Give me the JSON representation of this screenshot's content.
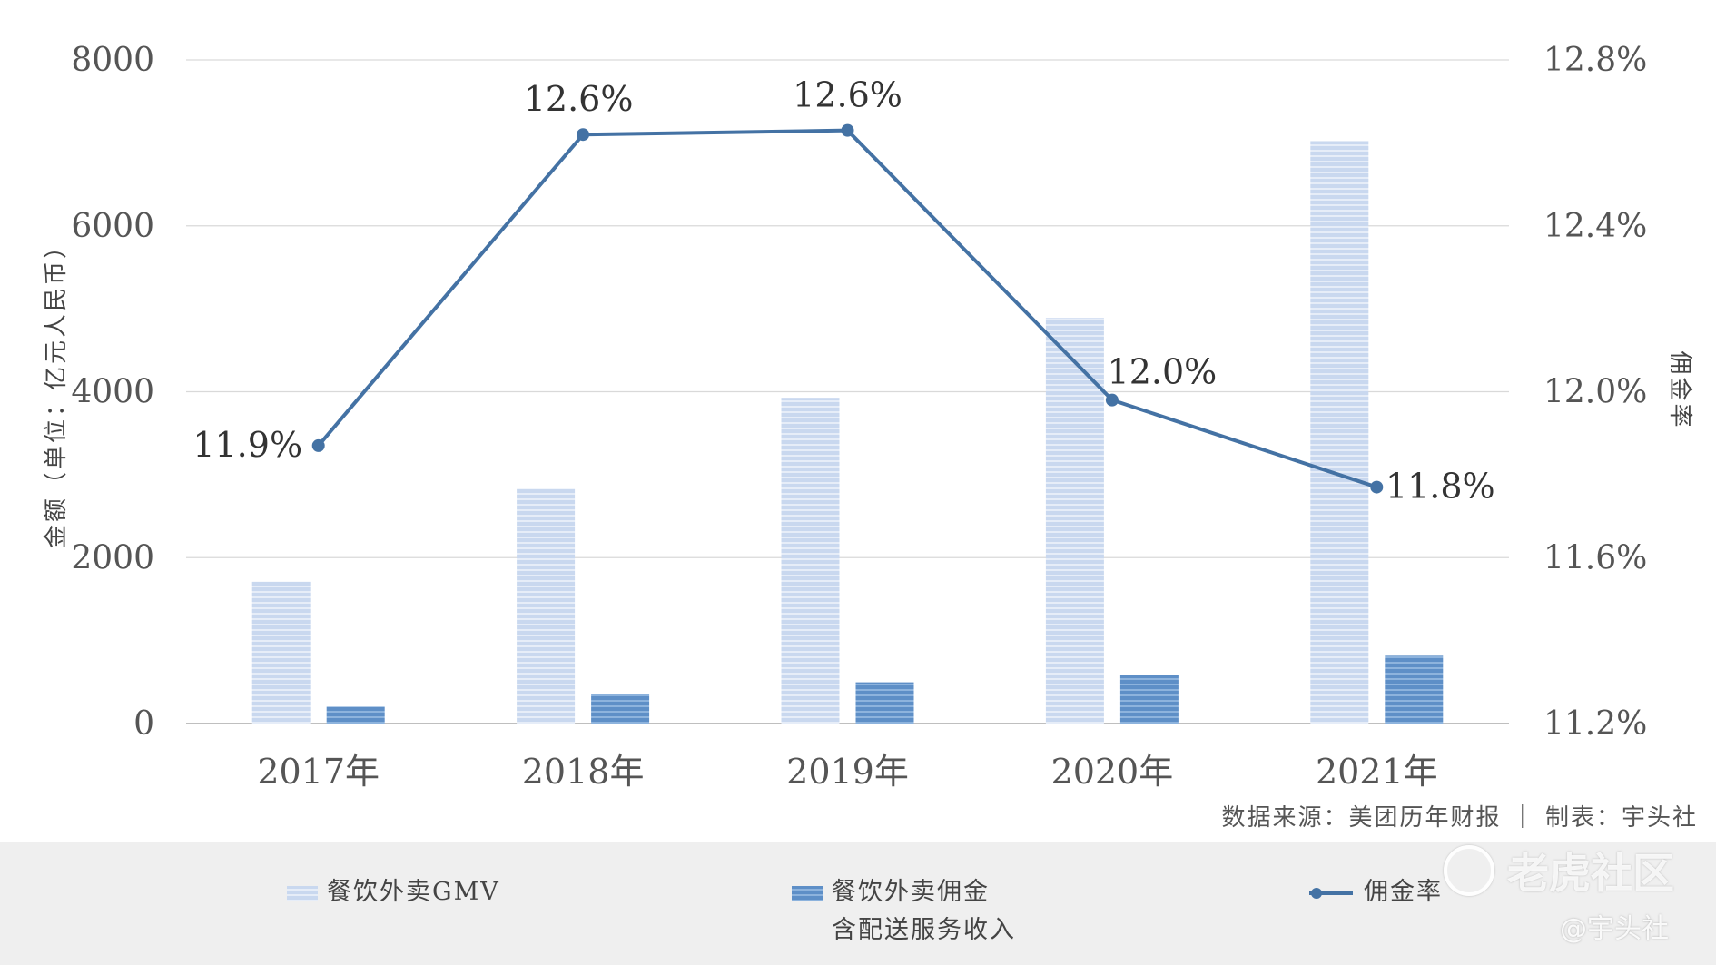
{
  "chart_data": {
    "type": "bar",
    "categories": [
      "2017年",
      "2018年",
      "2019年",
      "2020年",
      "2021年"
    ],
    "series": [
      {
        "name": "餐饮外卖GMV",
        "type": "bar",
        "axis": "left",
        "values": [
          1710,
          2829,
          3927,
          4889,
          7021
        ]
      },
      {
        "name": "餐饮外卖佣金含配送服务收入",
        "type": "bar",
        "axis": "left",
        "values": [
          204,
          357,
          497,
          588,
          817
        ]
      },
      {
        "name": "佣金率",
        "type": "line",
        "axis": "right",
        "values": [
          11.87,
          12.62,
          12.63,
          11.98,
          11.77
        ]
      }
    ],
    "line_labels": [
      "11.9%",
      "12.6%",
      "12.6%",
      "12.0%",
      "11.8%"
    ],
    "ylabel": "金额（单位：亿元人民币）",
    "ylim": [
      0,
      8000
    ],
    "yticks": [
      "0",
      "2000",
      "4000",
      "6000",
      "8000"
    ],
    "y2label": "佣金率",
    "y2lim": [
      11.2,
      12.8
    ],
    "y2ticks": [
      "11.2%",
      "11.6%",
      "12.0%",
      "12.4%",
      "12.8%"
    ],
    "grid": true,
    "legend_position": "bottom"
  },
  "legend": {
    "gmv": "餐饮外卖GMV",
    "commission_line1": "餐饮外卖佣金",
    "commission_line2": "含配送服务收入",
    "rate": "佣金率"
  },
  "source_note": "数据来源：美团历年财报 ｜ 制表：宇头社",
  "watermark": {
    "logo_text": "老虎社区",
    "handle": "@宇头社"
  },
  "colors": {
    "gmv_bar": "#c9d8ef",
    "gmv_stripe": "#e6edf8",
    "commission_bar": "#5e8fc7",
    "commission_stripe": "#8db3dd",
    "line": "#4472a4",
    "grid": "#d9d9d9",
    "axis": "#bfbfbf"
  }
}
